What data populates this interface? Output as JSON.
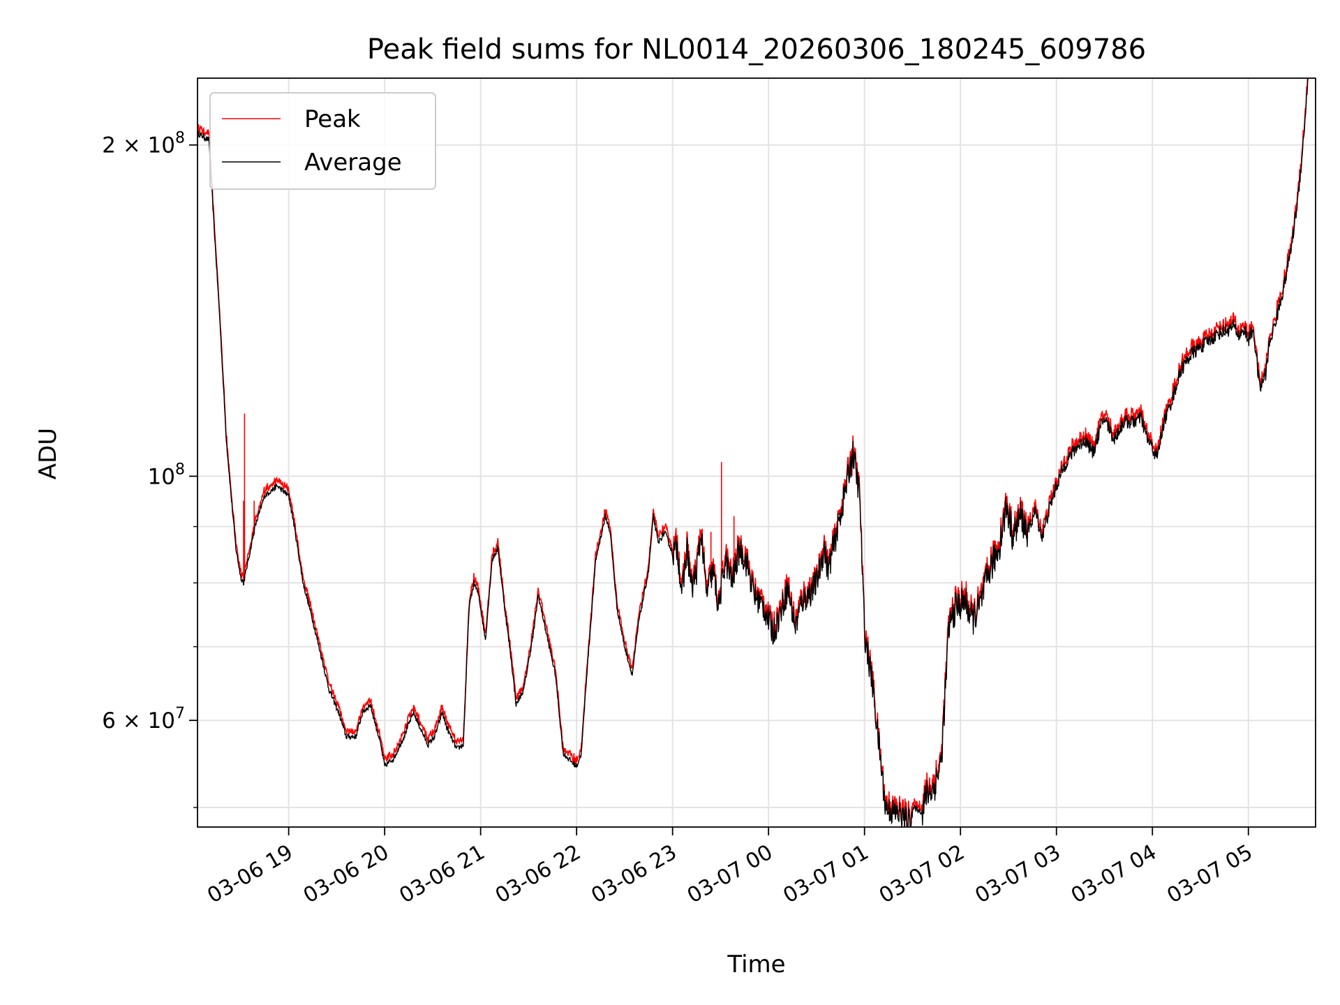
{
  "chart_data": {
    "type": "line",
    "title": "Peak field sums for NL0014_20260306_180245_609786",
    "xlabel": "Time",
    "ylabel": "ADU",
    "yscale": "log",
    "ylim": [
      48000000,
      230000000
    ],
    "xlim_hours": [
      -0.95,
      10.7
    ],
    "grid": true,
    "legend_position": "upper-left",
    "x_ticks": [
      {
        "hour": 0,
        "label": "03-06 19"
      },
      {
        "hour": 1,
        "label": "03-06 20"
      },
      {
        "hour": 2,
        "label": "03-06 21"
      },
      {
        "hour": 3,
        "label": "03-06 22"
      },
      {
        "hour": 4,
        "label": "03-06 23"
      },
      {
        "hour": 5,
        "label": "03-07 00"
      },
      {
        "hour": 6,
        "label": "03-07 01"
      },
      {
        "hour": 7,
        "label": "03-07 02"
      },
      {
        "hour": 8,
        "label": "03-07 03"
      },
      {
        "hour": 9,
        "label": "03-07 04"
      },
      {
        "hour": 10,
        "label": "03-07 05"
      }
    ],
    "y_major_ticks": [
      {
        "value": 60000000,
        "mantissa": "6",
        "times": "×",
        "base": "10",
        "exp": "7"
      },
      {
        "value": 100000000,
        "mantissa": "",
        "times": "",
        "base": "10",
        "exp": "8"
      },
      {
        "value": 200000000,
        "mantissa": "2",
        "times": "×",
        "base": "10",
        "exp": "8"
      }
    ],
    "y_minor_ticks": [
      50000000,
      70000000,
      80000000,
      90000000
    ],
    "series": [
      {
        "name": "Peak",
        "color": "#ff0000",
        "spikes": [
          [
            -0.46,
            114000000.0
          ],
          [
            -0.47,
            95000000.0
          ],
          [
            -0.36,
            95000000.0
          ],
          [
            4.51,
            103000000.0
          ],
          [
            4.4,
            89000000.0
          ],
          [
            4.64,
            92000000.0
          ],
          [
            5.87,
            100000000.0
          ]
        ]
      },
      {
        "name": "Average",
        "color": "#000000",
        "x_hours": [
          -0.95,
          -0.83,
          -0.78,
          -0.72,
          -0.65,
          -0.6,
          -0.55,
          -0.5,
          -0.47,
          -0.42,
          -0.35,
          -0.25,
          -0.12,
          0.0,
          0.05,
          0.15,
          0.25,
          0.35,
          0.42,
          0.52,
          0.6,
          0.7,
          0.77,
          0.85,
          0.95,
          1.0,
          1.1,
          1.2,
          1.3,
          1.45,
          1.52,
          1.6,
          1.65,
          1.75,
          1.82,
          1.88,
          1.93,
          1.98,
          2.05,
          2.12,
          2.18,
          2.25,
          2.32,
          2.37,
          2.45,
          2.55,
          2.6,
          2.7,
          2.78,
          2.86,
          2.95,
          3.0,
          3.05,
          3.1,
          3.2,
          3.3,
          3.35,
          3.42,
          3.5,
          3.58,
          3.65,
          3.75,
          3.8,
          3.85,
          3.92,
          4.0,
          4.05,
          4.1,
          4.15,
          4.2,
          4.25,
          4.3,
          4.35,
          4.42,
          4.48,
          4.55,
          4.62,
          4.7,
          4.78,
          4.85,
          4.95,
          5.05,
          5.12,
          5.2,
          5.28,
          5.35,
          5.42,
          5.5,
          5.58,
          5.62,
          5.7,
          5.78,
          5.83,
          5.88,
          5.95,
          6.0,
          6.08,
          6.15,
          6.22,
          6.3,
          6.38,
          6.45,
          6.52,
          6.6,
          6.65,
          6.72,
          6.8,
          6.88,
          6.95,
          7.05,
          7.12,
          7.2,
          7.3,
          7.4,
          7.48,
          7.55,
          7.62,
          7.7,
          7.78,
          7.85,
          7.92,
          8.0,
          8.1,
          8.2,
          8.3,
          8.38,
          8.45,
          8.5,
          8.6,
          8.7,
          8.8,
          8.88,
          8.95,
          9.05,
          9.12,
          9.2,
          9.3,
          9.4,
          9.5,
          9.6,
          9.7,
          9.8,
          9.85,
          9.9,
          9.95,
          10.0,
          10.05,
          10.12,
          10.18,
          10.22,
          10.3,
          10.38,
          10.45,
          10.52,
          10.58,
          10.62
        ],
        "values": [
          205000000.0,
          202000000.0,
          170000000.0,
          140000000.0,
          108000000.0,
          96000000.0,
          86000000.0,
          81000000.0,
          80000000.0,
          84000000.0,
          90000000.0,
          96000000.0,
          98000000.0,
          96000000.0,
          91000000.0,
          80000000.0,
          74000000.0,
          68000000.0,
          64000000.0,
          61000000.0,
          58000000.0,
          58000000.0,
          61000000.0,
          62000000.0,
          57500000.0,
          54500000.0,
          55500000.0,
          58000000.0,
          61000000.0,
          57000000.0,
          58000000.0,
          61000000.0,
          59000000.0,
          56500000.0,
          57000000.0,
          76000000.0,
          80000000.0,
          78000000.0,
          71000000.0,
          84000000.0,
          86000000.0,
          76000000.0,
          68000000.0,
          62000000.0,
          64000000.0,
          72000000.0,
          78000000.0,
          71000000.0,
          66000000.0,
          56000000.0,
          55000000.0,
          54500000.0,
          56000000.0,
          65000000.0,
          84000000.0,
          92000000.0,
          89000000.0,
          76000000.0,
          70000000.0,
          66000000.0,
          74000000.0,
          82000000.0,
          92000000.0,
          87000000.0,
          89000000.0,
          85000000.0,
          86000000.0,
          78000000.0,
          86000000.0,
          79000000.0,
          82000000.0,
          89000000.0,
          78000000.0,
          82000000.0,
          76000000.0,
          84000000.0,
          80000000.0,
          86000000.0,
          83000000.0,
          78000000.0,
          76000000.0,
          72000000.0,
          75000000.0,
          79000000.0,
          73000000.0,
          77000000.0,
          78000000.0,
          80000000.0,
          86000000.0,
          82000000.0,
          88000000.0,
          95000000.0,
          100000000.0,
          105000000.0,
          96000000.0,
          72000000.0,
          65000000.0,
          57000000.0,
          50000000.0,
          49500000.0,
          49200000.0,
          48500000.0,
          50000000.0,
          49500000.0,
          51500000.0,
          52000000.0,
          55000000.0,
          73000000.0,
          76000000.0,
          77000000.0,
          74000000.0,
          76000000.0,
          82000000.0,
          86000000.0,
          94000000.0,
          88000000.0,
          92000000.0,
          89000000.0,
          93000000.0,
          88000000.0,
          93000000.0,
          98000000.0,
          103000000.0,
          106000000.0,
          108000000.0,
          105000000.0,
          110000000.0,
          113000000.0,
          108000000.0,
          112000000.0,
          112000000.0,
          113000000.0,
          108000000.0,
          104000000.0,
          112000000.0,
          117000000.0,
          125000000.0,
          129000000.0,
          131000000.0,
          133000000.0,
          135000000.0,
          136000000.0,
          137000000.0,
          134000000.0,
          136000000.0,
          133000000.0,
          136000000.0,
          120000000.0,
          124000000.0,
          132000000.0,
          140000000.0,
          150000000.0,
          162000000.0,
          180000000.0,
          205000000.0,
          230000000.0
        ]
      }
    ]
  }
}
